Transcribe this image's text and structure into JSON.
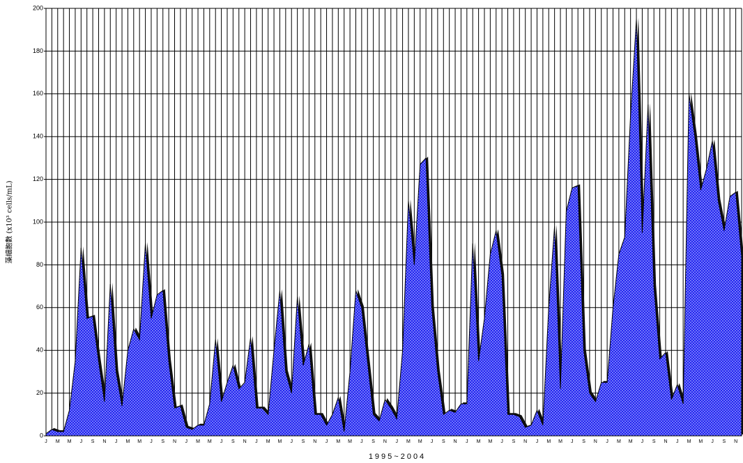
{
  "chart_data": {
    "type": "area",
    "x_label": "1995~2004",
    "y_label": "藻細胞數 (x10³ cells/mL)",
    "categories": [
      "J",
      null,
      "M",
      null,
      "M",
      null,
      "J",
      null,
      "S",
      null,
      "N",
      null,
      "J",
      null,
      "M",
      null,
      "M",
      null,
      "J",
      null,
      "S",
      null,
      "N",
      null,
      "J",
      null,
      "M",
      null,
      "M",
      null,
      "J",
      null,
      "S",
      null,
      "N",
      null,
      "J",
      null,
      "M",
      null,
      "M",
      null,
      "J",
      null,
      "S",
      null,
      "N",
      null,
      "J",
      null,
      "M",
      null,
      "M",
      null,
      "J",
      null,
      "S",
      null,
      "N",
      null,
      "J",
      null,
      "M",
      null,
      "M",
      null,
      "J",
      null,
      "S",
      null,
      "N",
      null,
      "J",
      null,
      "M",
      null,
      "M",
      null,
      "J",
      null,
      "S",
      null,
      "N",
      null,
      "J",
      null,
      "M",
      null,
      "M",
      null,
      "J",
      null,
      "S",
      null,
      "N",
      null,
      "J",
      null,
      "M",
      null,
      "M",
      null,
      "J",
      null,
      "S",
      null,
      "N",
      null,
      "J",
      null,
      "M",
      null,
      "M",
      null,
      "J",
      null,
      "S",
      null,
      "N",
      null
    ],
    "values": [
      1,
      3,
      2,
      2,
      12,
      35,
      88,
      55,
      56,
      35,
      16,
      71,
      30,
      14,
      40,
      50,
      45,
      90,
      55,
      66,
      68,
      35,
      13,
      14,
      4,
      3,
      5,
      5,
      15,
      45,
      16,
      25,
      33,
      22,
      25,
      46,
      13,
      13,
      10,
      40,
      68,
      30,
      20,
      65,
      33,
      43,
      10,
      10,
      5,
      10,
      18,
      2,
      30,
      68,
      60,
      35,
      10,
      7,
      17,
      13,
      8,
      40,
      110,
      80,
      127,
      130,
      60,
      30,
      10,
      12,
      11,
      15,
      15,
      90,
      35,
      55,
      85,
      96,
      75,
      10,
      10,
      9,
      4,
      5,
      12,
      5,
      60,
      98,
      22,
      105,
      116,
      117,
      40,
      20,
      16,
      25,
      25,
      60,
      85,
      93,
      150,
      195,
      95,
      155,
      70,
      36,
      39,
      17,
      24,
      15,
      160,
      140,
      115,
      125,
      138,
      110,
      96,
      112,
      114,
      84
    ],
    "color": "#2323f0",
    "ylim": [
      0,
      200
    ],
    "yticks": [
      0,
      20,
      40,
      60,
      80,
      100,
      120,
      140,
      160,
      180,
      200
    ],
    "grid": true
  }
}
